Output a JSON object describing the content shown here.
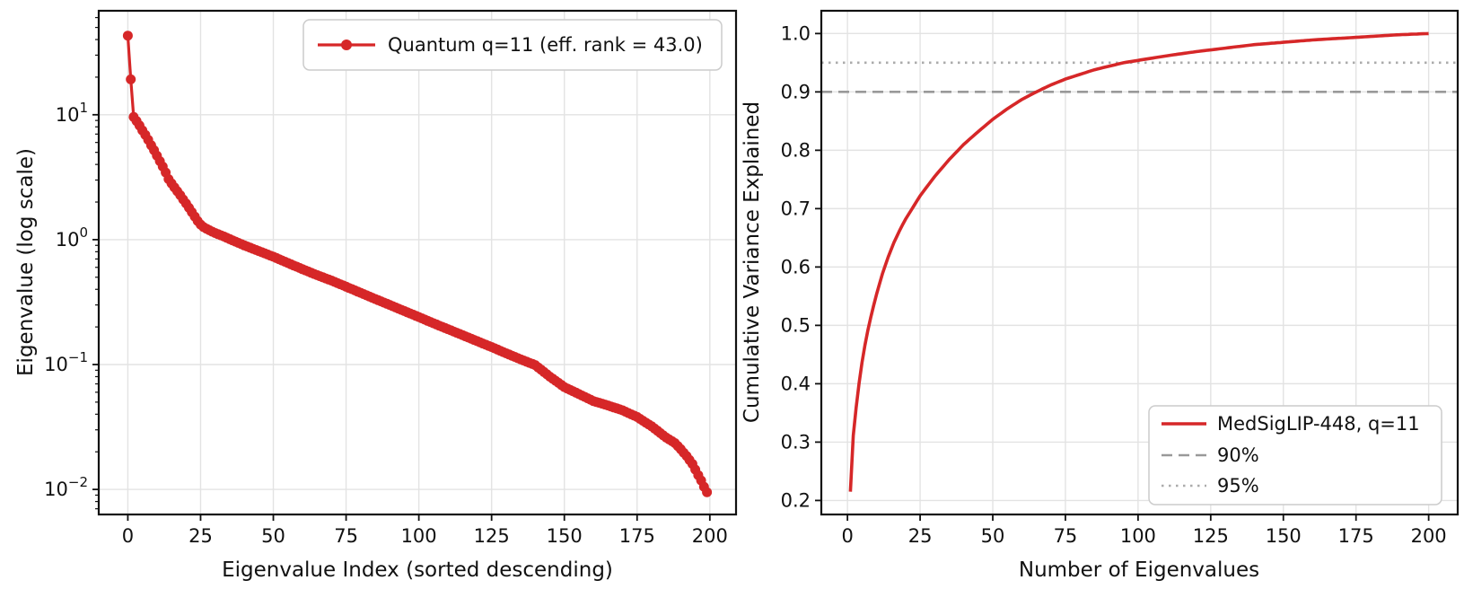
{
  "figure": {
    "background": "#ffffff",
    "description": "Two-panel eigenvalue spectrum figure: left scree plot (log scale), right cumulative variance explained"
  },
  "colors": {
    "series_red": "#d62728",
    "grid": "#e3e3e3",
    "spine": "#111111",
    "text": "#111111",
    "threshold_90": "#999999",
    "threshold_95": "#ababab",
    "legend_border": "#cccccc"
  },
  "chart_data": [
    {
      "type": "line",
      "panel": "left",
      "title": "",
      "xlabel": "Eigenvalue Index (sorted descending)",
      "ylabel": "Eigenvalue (log scale)",
      "yscale": "log",
      "xlim": [
        -10,
        209
      ],
      "ylim": [
        0.0063,
        68
      ],
      "xticks": [
        0,
        25,
        50,
        75,
        100,
        125,
        150,
        175,
        200
      ],
      "ytick_exponents": [
        1,
        0,
        -1,
        -2
      ],
      "grid": true,
      "legend": {
        "position": "upper right",
        "entries": [
          {
            "label": "Quantum q=11 (eff. rank = 43.0)",
            "color": "#d62728",
            "style": "solid",
            "marker": "circle"
          }
        ]
      },
      "series": [
        {
          "name": "Quantum q=11 (eff. rank = 43.0)",
          "color": "#d62728",
          "marker": "circle",
          "marker_radius": 5.5,
          "line_width": 3.2,
          "x_start": 0,
          "x_end": 199,
          "interpolation": "log-linear",
          "anchors": [
            [
              0,
              43
            ],
            [
              1,
              19.2
            ],
            [
              2,
              9.6
            ],
            [
              3,
              8.9
            ],
            [
              4,
              8.2
            ],
            [
              5,
              7.5
            ],
            [
              6,
              6.9
            ],
            [
              7,
              6.3
            ],
            [
              8,
              5.7
            ],
            [
              9,
              5.2
            ],
            [
              10,
              4.7
            ],
            [
              11,
              4.25
            ],
            [
              12,
              3.85
            ],
            [
              13,
              3.45
            ],
            [
              14,
              3.05
            ],
            [
              15,
              2.82
            ],
            [
              16,
              2.62
            ],
            [
              17,
              2.44
            ],
            [
              18,
              2.27
            ],
            [
              19,
              2.1
            ],
            [
              20,
              1.95
            ],
            [
              21,
              1.8
            ],
            [
              22,
              1.66
            ],
            [
              23,
              1.53
            ],
            [
              24,
              1.41
            ],
            [
              25,
              1.32
            ],
            [
              26,
              1.26
            ],
            [
              28,
              1.19
            ],
            [
              30,
              1.13
            ],
            [
              33,
              1.06
            ],
            [
              35,
              1.01
            ],
            [
              40,
              0.9
            ],
            [
              45,
              0.81
            ],
            [
              50,
              0.73
            ],
            [
              55,
              0.65
            ],
            [
              60,
              0.58
            ],
            [
              65,
              0.52
            ],
            [
              70,
              0.47
            ],
            [
              75,
              0.42
            ],
            [
              80,
              0.375
            ],
            [
              85,
              0.335
            ],
            [
              90,
              0.3
            ],
            [
              95,
              0.268
            ],
            [
              100,
              0.24
            ],
            [
              105,
              0.214
            ],
            [
              110,
              0.192
            ],
            [
              115,
              0.172
            ],
            [
              120,
              0.154
            ],
            [
              125,
              0.138
            ],
            [
              130,
              0.123
            ],
            [
              135,
              0.11
            ],
            [
              140,
              0.099
            ],
            [
              145,
              0.08
            ],
            [
              150,
              0.066
            ],
            [
              155,
              0.058
            ],
            [
              160,
              0.051
            ],
            [
              165,
              0.047
            ],
            [
              170,
              0.043
            ],
            [
              175,
              0.038
            ],
            [
              180,
              0.032
            ],
            [
              185,
              0.026
            ],
            [
              188,
              0.0235
            ],
            [
              190,
              0.021
            ],
            [
              192,
              0.0185
            ],
            [
              194,
              0.016
            ],
            [
              196,
              0.013
            ],
            [
              197,
              0.0118
            ],
            [
              198,
              0.0105
            ],
            [
              199,
              0.0095
            ]
          ]
        }
      ]
    },
    {
      "type": "line",
      "panel": "right",
      "title": "",
      "xlabel": "Number of Eigenvalues",
      "ylabel": "Cumulative Variance Explained",
      "yscale": "linear",
      "xlim": [
        -9,
        210
      ],
      "ylim": [
        0.176,
        1.039
      ],
      "xticks": [
        0,
        25,
        50,
        75,
        100,
        125,
        150,
        175,
        200
      ],
      "yticks": [
        0.2,
        0.3,
        0.4,
        0.5,
        0.6,
        0.7,
        0.8,
        0.9,
        1.0
      ],
      "grid": true,
      "thresholds": [
        {
          "label": "90%",
          "value": 0.9,
          "style": "dashed",
          "color": "#999999"
        },
        {
          "label": "95%",
          "value": 0.95,
          "style": "dotted",
          "color": "#ababab"
        }
      ],
      "legend": {
        "position": "lower right",
        "entries": [
          {
            "label": "MedSigLIP-448, q=11",
            "color": "#d62728",
            "style": "solid"
          },
          {
            "label": "90%",
            "color": "#999999",
            "style": "dashed"
          },
          {
            "label": "95%",
            "color": "#ababab",
            "style": "dotted"
          }
        ]
      },
      "series": [
        {
          "name": "MedSigLIP-448, q=11",
          "color": "#d62728",
          "marker": null,
          "line_width": 3.6,
          "x_start": 1,
          "x_end": 200,
          "interpolation": "linear",
          "anchors": [
            [
              1,
              0.215
            ],
            [
              2,
              0.311
            ],
            [
              3,
              0.359
            ],
            [
              4,
              0.401
            ],
            [
              5,
              0.436
            ],
            [
              6,
              0.466
            ],
            [
              7,
              0.491
            ],
            [
              8,
              0.513
            ],
            [
              9,
              0.534
            ],
            [
              10,
              0.553
            ],
            [
              12,
              0.588
            ],
            [
              14,
              0.617
            ],
            [
              16,
              0.642
            ],
            [
              18,
              0.663
            ],
            [
              20,
              0.682
            ],
            [
              25,
              0.722
            ],
            [
              30,
              0.755
            ],
            [
              35,
              0.784
            ],
            [
              40,
              0.81
            ],
            [
              45,
              0.832
            ],
            [
              50,
              0.853
            ],
            [
              55,
              0.871
            ],
            [
              60,
              0.887
            ],
            [
              65,
              0.9
            ],
            [
              70,
              0.912
            ],
            [
              75,
              0.922
            ],
            [
              80,
              0.93
            ],
            [
              85,
              0.938
            ],
            [
              90,
              0.944
            ],
            [
              95,
              0.95
            ],
            [
              100,
              0.954
            ],
            [
              110,
              0.962
            ],
            [
              120,
              0.969
            ],
            [
              130,
              0.975
            ],
            [
              140,
              0.981
            ],
            [
              150,
              0.985
            ],
            [
              160,
              0.989
            ],
            [
              170,
              0.992
            ],
            [
              180,
              0.995
            ],
            [
              190,
              0.998
            ],
            [
              200,
              1.0
            ]
          ]
        }
      ]
    }
  ]
}
